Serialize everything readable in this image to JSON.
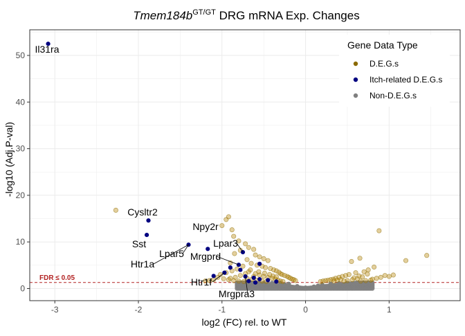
{
  "chart_data": {
    "type": "scatter",
    "title_main": "Tmem184b",
    "title_superscript": "GT/GT",
    "title_rest": " DRG mRNA Exp. Changes",
    "xlabel": "log2 (FC) rel. to WT",
    "ylabel": "-log10 (Adj.P-val)",
    "xlim": [
      -3.3,
      1.85
    ],
    "ylim": [
      -2.6,
      55.5
    ],
    "xticks": [
      -3,
      -2,
      -1,
      0,
      1
    ],
    "yticks": [
      0,
      10,
      20,
      30,
      40,
      50
    ],
    "grid": true,
    "threshold": {
      "y": 1.3,
      "label": "FDR ≤ 0.05",
      "color": "#b22222"
    },
    "legend": {
      "title": "Gene Data Type",
      "placement": "top-right",
      "entries": [
        {
          "name": "D.E.G.s",
          "color": "#8b6a00"
        },
        {
          "name": "Itch-related D.E.G.s",
          "color": "#000080"
        },
        {
          "name": "Non-D.E.G.s",
          "color": "#808080"
        }
      ]
    },
    "series": [
      {
        "name": "D.E.G.s",
        "color": "#b8860b",
        "points": [
          [
            -2.27,
            16.8
          ],
          [
            -0.95,
            14.8
          ],
          [
            -0.92,
            15.4
          ],
          [
            -0.88,
            12.6
          ],
          [
            -0.86,
            11.2
          ],
          [
            -1.0,
            13.5
          ],
          [
            -0.8,
            10.2
          ],
          [
            -0.72,
            9.6
          ],
          [
            -0.68,
            8.8
          ],
          [
            -0.62,
            8.4
          ],
          [
            -0.78,
            8.2
          ],
          [
            -0.85,
            7.5
          ],
          [
            -0.6,
            7.2
          ],
          [
            -0.55,
            6.8
          ],
          [
            -0.5,
            6.4
          ],
          [
            -0.45,
            6.0
          ],
          [
            -0.7,
            6.2
          ],
          [
            -0.9,
            5.5
          ],
          [
            -0.65,
            5.4
          ],
          [
            -0.58,
            5.0
          ],
          [
            -0.52,
            4.8
          ],
          [
            -0.48,
            4.5
          ],
          [
            -0.42,
            4.3
          ],
          [
            -0.38,
            4.0
          ],
          [
            -0.35,
            3.8
          ],
          [
            -0.32,
            3.5
          ],
          [
            -0.3,
            3.2
          ],
          [
            -0.28,
            3.0
          ],
          [
            -0.25,
            2.8
          ],
          [
            -0.22,
            2.6
          ],
          [
            -0.2,
            2.4
          ],
          [
            -0.18,
            2.2
          ],
          [
            -0.16,
            2.0
          ],
          [
            -0.14,
            1.9
          ],
          [
            -0.12,
            1.7
          ],
          [
            -0.75,
            4.8
          ],
          [
            -0.82,
            4.2
          ],
          [
            -0.88,
            3.8
          ],
          [
            -0.95,
            3.4
          ],
          [
            -1.02,
            3.0
          ],
          [
            -0.68,
            3.6
          ],
          [
            -0.6,
            3.2
          ],
          [
            -0.55,
            2.9
          ],
          [
            -0.5,
            2.6
          ],
          [
            -0.45,
            2.4
          ],
          [
            -0.4,
            2.2
          ],
          [
            -0.36,
            2.0
          ],
          [
            -0.33,
            1.8
          ],
          [
            -0.3,
            1.6
          ],
          [
            -0.27,
            1.5
          ],
          [
            -1.05,
            2.4
          ],
          [
            -0.98,
            2.1
          ],
          [
            -0.92,
            1.9
          ],
          [
            -0.86,
            1.7
          ],
          [
            -0.8,
            1.6
          ],
          [
            -0.74,
            1.5
          ],
          [
            -0.7,
            2.2
          ],
          [
            -0.64,
            2.0
          ],
          [
            -0.58,
            1.8
          ],
          [
            -0.52,
            1.6
          ],
          [
            -0.47,
            1.5
          ],
          [
            -0.43,
            3.0
          ],
          [
            -0.39,
            2.7
          ],
          [
            -0.35,
            2.5
          ],
          [
            -0.62,
            2.6
          ],
          [
            -0.66,
            4.0
          ],
          [
            -0.72,
            3.2
          ],
          [
            -0.78,
            2.8
          ],
          [
            -0.84,
            2.4
          ],
          [
            -0.9,
            2.2
          ],
          [
            -1.1,
            1.9
          ],
          [
            -1.15,
            1.7
          ],
          [
            -1.2,
            1.6
          ],
          [
            -0.56,
            3.6
          ],
          [
            -0.49,
            3.3
          ],
          [
            0.88,
            12.4
          ],
          [
            1.45,
            7.1
          ],
          [
            1.2,
            6.0
          ],
          [
            0.65,
            6.5
          ],
          [
            0.55,
            5.8
          ],
          [
            0.82,
            4.6
          ],
          [
            0.75,
            4.0
          ],
          [
            0.7,
            3.6
          ],
          [
            0.6,
            3.4
          ],
          [
            0.52,
            3.0
          ],
          [
            0.48,
            2.8
          ],
          [
            0.44,
            2.6
          ],
          [
            0.4,
            2.4
          ],
          [
            0.36,
            2.2
          ],
          [
            0.33,
            2.0
          ],
          [
            0.3,
            1.9
          ],
          [
            0.27,
            1.8
          ],
          [
            0.24,
            1.7
          ],
          [
            0.21,
            1.6
          ],
          [
            0.18,
            1.5
          ],
          [
            0.95,
            2.8
          ],
          [
            1.0,
            2.6
          ],
          [
            0.9,
            2.4
          ],
          [
            0.85,
            2.2
          ],
          [
            0.8,
            2.0
          ],
          [
            0.78,
            1.8
          ],
          [
            0.72,
            1.7
          ],
          [
            0.66,
            1.6
          ],
          [
            0.62,
            2.1
          ],
          [
            0.58,
            2.3
          ],
          [
            0.56,
            1.9
          ],
          [
            0.5,
            1.7
          ],
          [
            0.46,
            1.6
          ],
          [
            0.42,
            1.9
          ],
          [
            0.38,
            1.8
          ],
          [
            0.34,
            1.6
          ],
          [
            0.68,
            2.5
          ],
          [
            0.64,
            2.7
          ],
          [
            0.74,
            3.1
          ],
          [
            1.05,
            2.9
          ]
        ]
      },
      {
        "name": "Itch-related D.E.G.s",
        "color": "#000080",
        "points": [
          [
            -3.08,
            52.5
          ],
          [
            -1.88,
            14.6
          ],
          [
            -1.9,
            11.5
          ],
          [
            -1.4,
            9.4
          ],
          [
            -1.17,
            8.5
          ],
          [
            -0.75,
            7.8
          ],
          [
            -0.8,
            5.1
          ],
          [
            -0.55,
            5.3
          ],
          [
            -0.9,
            4.5
          ],
          [
            -0.78,
            4.0
          ],
          [
            -0.97,
            3.4
          ],
          [
            -0.72,
            2.6
          ],
          [
            -0.62,
            2.3
          ],
          [
            -0.55,
            2.0
          ],
          [
            -0.45,
            1.8
          ],
          [
            -0.35,
            1.5
          ],
          [
            -1.1,
            2.7
          ],
          [
            -0.68,
            1.6
          ],
          [
            -0.6,
            1.3
          ]
        ]
      },
      {
        "name": "Non-D.E.G.s",
        "color": "#808080",
        "points": [
          [
            -0.3,
            1.2
          ],
          [
            -0.2,
            1.0
          ],
          [
            -0.1,
            0.5
          ],
          [
            0.0,
            0.2
          ],
          [
            0.1,
            0.4
          ],
          [
            0.2,
            0.8
          ],
          [
            0.3,
            1.0
          ],
          [
            0.4,
            1.1
          ],
          [
            0.5,
            1.2
          ],
          [
            0.6,
            1.2
          ],
          [
            0.7,
            1.2
          ],
          [
            -0.4,
            1.2
          ],
          [
            -0.5,
            1.2
          ],
          [
            -0.25,
            0.9
          ],
          [
            0.15,
            0.6
          ]
        ]
      }
    ],
    "non_deg_cloud": {
      "xmin": -0.82,
      "xmax": 0.8,
      "comment_free_shape": "v"
    },
    "labels": [
      {
        "text": "Il31ra",
        "x": -3.08,
        "y": 52.5
      },
      {
        "text": "Cysltr2",
        "x": -1.88,
        "y": 14.6
      },
      {
        "text": "Sst",
        "x": -1.9,
        "y": 11.5
      },
      {
        "text": "Npy2r",
        "x": -1.17,
        "y": 8.5
      },
      {
        "text": "Lpar3",
        "x": -0.75,
        "y": 7.8
      },
      {
        "text": "Lpar5",
        "x": -1.4,
        "y": 9.4
      },
      {
        "text": "Mrgprd",
        "x": -0.8,
        "y": 5.1
      },
      {
        "text": "Htr1a",
        "x": -1.4,
        "y": 9.4
      },
      {
        "text": "Htr1f",
        "x": -0.97,
        "y": 3.4
      },
      {
        "text": "Mrgpra3",
        "x": -0.72,
        "y": 2.6
      }
    ]
  }
}
